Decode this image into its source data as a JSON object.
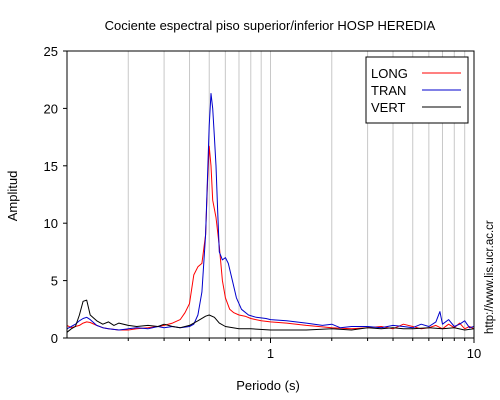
{
  "chart_data": {
    "type": "line",
    "title": "Cociente espectral piso superior/inferior  HOSP HEREDIA",
    "xlabel": "Periodo (s)",
    "ylabel": "Amplitud",
    "x_scale": "log",
    "xlim": [
      0.1,
      10
    ],
    "ylim": [
      0,
      25
    ],
    "grid": true,
    "legend_position": "top-right",
    "x_tick_labels": [
      {
        "value": 1,
        "label": "1"
      },
      {
        "value": 10,
        "label": "10"
      }
    ],
    "y_ticks": [
      0,
      5,
      10,
      15,
      20,
      25
    ],
    "series": [
      {
        "name": "LONG",
        "color": "#ff0000",
        "points": [
          [
            0.1,
            1.1
          ],
          [
            0.105,
            0.9
          ],
          [
            0.11,
            1.0
          ],
          [
            0.115,
            1.1
          ],
          [
            0.12,
            1.3
          ],
          [
            0.125,
            1.4
          ],
          [
            0.13,
            1.35
          ],
          [
            0.14,
            1.1
          ],
          [
            0.15,
            0.9
          ],
          [
            0.16,
            0.8
          ],
          [
            0.18,
            0.7
          ],
          [
            0.2,
            0.7
          ],
          [
            0.22,
            0.8
          ],
          [
            0.25,
            0.9
          ],
          [
            0.28,
            1.0
          ],
          [
            0.3,
            1.1
          ],
          [
            0.33,
            1.3
          ],
          [
            0.36,
            1.6
          ],
          [
            0.38,
            2.2
          ],
          [
            0.4,
            3.0
          ],
          [
            0.42,
            5.5
          ],
          [
            0.44,
            6.2
          ],
          [
            0.46,
            6.5
          ],
          [
            0.48,
            9.0
          ],
          [
            0.49,
            13.5
          ],
          [
            0.5,
            16.7
          ],
          [
            0.51,
            15.0
          ],
          [
            0.52,
            12.0
          ],
          [
            0.54,
            10.5
          ],
          [
            0.56,
            8.0
          ],
          [
            0.58,
            5.0
          ],
          [
            0.6,
            3.5
          ],
          [
            0.63,
            2.5
          ],
          [
            0.66,
            2.2
          ],
          [
            0.7,
            2.0
          ],
          [
            0.75,
            1.9
          ],
          [
            0.8,
            1.7
          ],
          [
            0.9,
            1.5
          ],
          [
            1.0,
            1.4
          ],
          [
            1.2,
            1.3
          ],
          [
            1.5,
            1.1
          ],
          [
            2.0,
            0.9
          ],
          [
            2.5,
            0.8
          ],
          [
            3.0,
            0.9
          ],
          [
            3.5,
            1.0
          ],
          [
            4.0,
            0.8
          ],
          [
            4.5,
            1.2
          ],
          [
            5.0,
            1.0
          ],
          [
            5.5,
            0.8
          ],
          [
            6.0,
            0.9
          ],
          [
            6.5,
            1.1
          ],
          [
            7.0,
            0.8
          ],
          [
            7.5,
            1.2
          ],
          [
            8.0,
            0.9
          ],
          [
            8.5,
            1.3
          ],
          [
            9.0,
            0.8
          ],
          [
            9.5,
            1.0
          ],
          [
            10.0,
            0.8
          ]
        ]
      },
      {
        "name": "TRAN",
        "color": "#0000cc",
        "points": [
          [
            0.1,
            0.8
          ],
          [
            0.105,
            1.0
          ],
          [
            0.11,
            1.2
          ],
          [
            0.115,
            1.5
          ],
          [
            0.12,
            1.7
          ],
          [
            0.125,
            1.8
          ],
          [
            0.13,
            1.6
          ],
          [
            0.14,
            1.1
          ],
          [
            0.15,
            0.9
          ],
          [
            0.16,
            0.8
          ],
          [
            0.18,
            0.7
          ],
          [
            0.2,
            0.8
          ],
          [
            0.22,
            0.9
          ],
          [
            0.25,
            0.8
          ],
          [
            0.28,
            1.0
          ],
          [
            0.3,
            0.9
          ],
          [
            0.33,
            1.0
          ],
          [
            0.36,
            0.9
          ],
          [
            0.4,
            1.0
          ],
          [
            0.42,
            1.2
          ],
          [
            0.44,
            2.0
          ],
          [
            0.46,
            4.0
          ],
          [
            0.48,
            9.0
          ],
          [
            0.49,
            14.0
          ],
          [
            0.5,
            18.5
          ],
          [
            0.51,
            21.3
          ],
          [
            0.52,
            20.0
          ],
          [
            0.53,
            17.5
          ],
          [
            0.54,
            15.0
          ],
          [
            0.55,
            11.0
          ],
          [
            0.56,
            7.5
          ],
          [
            0.58,
            6.8
          ],
          [
            0.6,
            7.0
          ],
          [
            0.62,
            6.5
          ],
          [
            0.65,
            5.0
          ],
          [
            0.68,
            3.5
          ],
          [
            0.72,
            2.5
          ],
          [
            0.78,
            2.0
          ],
          [
            0.85,
            1.8
          ],
          [
            0.95,
            1.7
          ],
          [
            1.0,
            1.6
          ],
          [
            1.2,
            1.5
          ],
          [
            1.5,
            1.3
          ],
          [
            1.8,
            1.1
          ],
          [
            2.0,
            1.2
          ],
          [
            2.2,
            0.9
          ],
          [
            2.5,
            1.0
          ],
          [
            3.0,
            1.0
          ],
          [
            3.5,
            0.9
          ],
          [
            4.0,
            1.1
          ],
          [
            4.5,
            1.0
          ],
          [
            5.0,
            0.9
          ],
          [
            5.5,
            1.2
          ],
          [
            6.0,
            1.0
          ],
          [
            6.5,
            1.4
          ],
          [
            6.8,
            2.3
          ],
          [
            7.0,
            1.2
          ],
          [
            7.5,
            1.6
          ],
          [
            8.0,
            1.0
          ],
          [
            8.5,
            1.2
          ],
          [
            9.0,
            1.5
          ],
          [
            9.5,
            0.9
          ],
          [
            10.0,
            1.0
          ]
        ]
      },
      {
        "name": "VERT",
        "color": "#000000",
        "points": [
          [
            0.1,
            0.5
          ],
          [
            0.105,
            0.8
          ],
          [
            0.11,
            1.0
          ],
          [
            0.115,
            2.0
          ],
          [
            0.12,
            3.2
          ],
          [
            0.125,
            3.3
          ],
          [
            0.13,
            2.0
          ],
          [
            0.14,
            1.5
          ],
          [
            0.15,
            1.2
          ],
          [
            0.16,
            1.4
          ],
          [
            0.17,
            1.1
          ],
          [
            0.18,
            1.3
          ],
          [
            0.2,
            1.1
          ],
          [
            0.22,
            1.0
          ],
          [
            0.25,
            1.1
          ],
          [
            0.28,
            1.0
          ],
          [
            0.3,
            1.2
          ],
          [
            0.33,
            1.0
          ],
          [
            0.36,
            0.9
          ],
          [
            0.4,
            1.1
          ],
          [
            0.44,
            1.5
          ],
          [
            0.48,
            1.9
          ],
          [
            0.5,
            2.0
          ],
          [
            0.53,
            1.8
          ],
          [
            0.56,
            1.3
          ],
          [
            0.6,
            1.0
          ],
          [
            0.7,
            0.8
          ],
          [
            0.8,
            0.8
          ],
          [
            1.0,
            0.7
          ],
          [
            1.5,
            0.7
          ],
          [
            2.0,
            0.8
          ],
          [
            2.5,
            0.7
          ],
          [
            3.0,
            0.9
          ],
          [
            3.5,
            0.8
          ],
          [
            4.0,
            0.9
          ],
          [
            4.5,
            0.8
          ],
          [
            5.0,
            0.8
          ],
          [
            6.0,
            0.9
          ],
          [
            7.0,
            0.8
          ],
          [
            8.0,
            0.9
          ],
          [
            9.0,
            0.7
          ],
          [
            10.0,
            0.8
          ]
        ]
      }
    ]
  },
  "watermark_url": "http://www.lis.ucr.ac.cr"
}
